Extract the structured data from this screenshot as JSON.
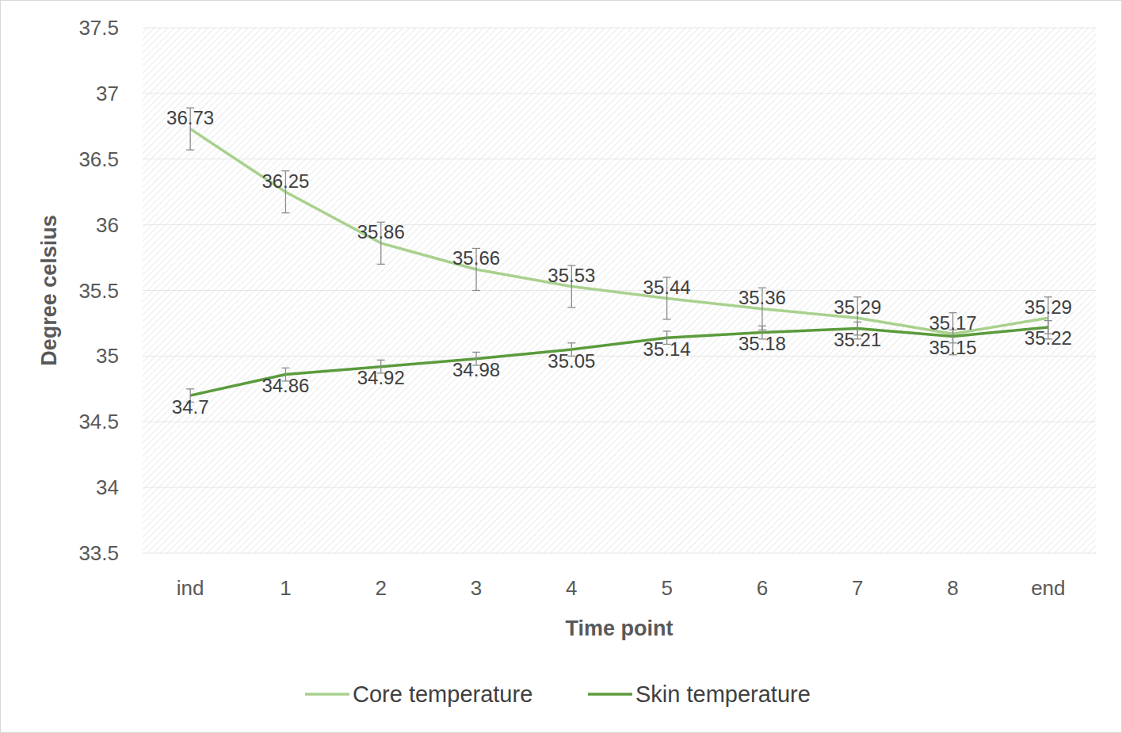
{
  "chart_data": {
    "type": "line",
    "x_label": "Time point",
    "y_label": "Degree celsius",
    "categories": [
      "ind",
      "1",
      "2",
      "3",
      "4",
      "5",
      "6",
      "7",
      "8",
      "end"
    ],
    "series": [
      {
        "name": "Core temperature",
        "color": "#a9d18e",
        "values": [
          36.73,
          36.25,
          35.86,
          35.66,
          35.53,
          35.44,
          35.36,
          35.29,
          35.17,
          35.29
        ],
        "errors": [
          0.16,
          0.16,
          0.16,
          0.16,
          0.16,
          0.16,
          0.16,
          0.16,
          0.16,
          0.16
        ]
      },
      {
        "name": "Skin temperature",
        "color": "#5b9b3c",
        "values": [
          34.7,
          34.86,
          34.92,
          34.98,
          35.05,
          35.14,
          35.18,
          35.21,
          35.15,
          35.22
        ],
        "errors": [
          0.05,
          0.05,
          0.05,
          0.05,
          0.05,
          0.05,
          0.05,
          0.05,
          0.05,
          0.05
        ]
      }
    ],
    "ylim": [
      33.5,
      37.5
    ],
    "yticks": [
      33.5,
      34,
      34.5,
      35,
      35.5,
      36,
      36.5,
      37,
      37.5
    ],
    "grid": true,
    "data_labels": true,
    "legend": "bottom"
  }
}
